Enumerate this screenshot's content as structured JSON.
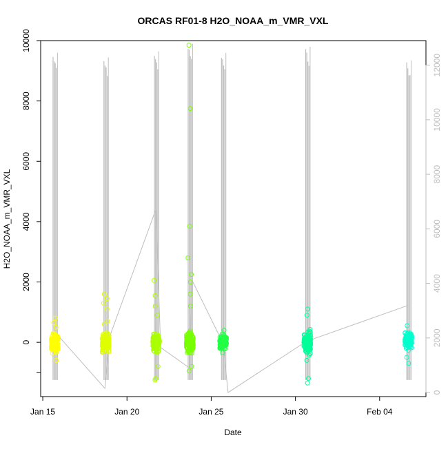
{
  "chart_data": {
    "type": "scatter",
    "title": "ORCAS RF01-8 H2O_NOAA_m_VMR_VXL",
    "xlabel": "Date",
    "ylabel": "H2O_NOAA_m_VMR_VXL",
    "x_ticks": [
      "Jan 15",
      "Jan 20",
      "Jan 25",
      "Jan 30",
      "Feb 04"
    ],
    "y_ticks": [
      "-",
      "0",
      "2000",
      "4000",
      "6000",
      "8000",
      "10000"
    ],
    "y2_ticks": [
      "0",
      "2000",
      "4000",
      "6000",
      "8000",
      "10000",
      "12000"
    ],
    "xlim": [
      "2016-01-14 21:00",
      "2016-02-06 18:00"
    ],
    "ylim": [
      -1800,
      10000
    ],
    "y2lim": [
      -150,
      12900
    ],
    "grid": false,
    "colors": {
      "secondary_series": "#bebebe",
      "flights": [
        "#ffff00",
        "#dfff00",
        "#aaff00",
        "#77ff00",
        "#22ff44",
        "#00ff99",
        "#00ffcc"
      ]
    },
    "flights": [
      {
        "date": "2016-01-15 17:00",
        "median": 0,
        "spread_low": -400,
        "spread_high": 400,
        "outliers": [
          500,
          650,
          800,
          -600
        ],
        "spike_top": 9550
      },
      {
        "date": "2016-01-18 17:30",
        "median": 0,
        "spread_low": -400,
        "spread_high": 400,
        "outliers": [
          700,
          1100,
          1300,
          1450,
          1600,
          600
        ],
        "spike_top": 9400
      },
      {
        "date": "2016-01-21 17:30",
        "median": 0,
        "spread_low": -400,
        "spread_high": 400,
        "outliers": [
          1200,
          1550,
          2050,
          900,
          -800,
          -1200,
          -1250
        ],
        "spike_top": 9600
      },
      {
        "date": "2016-01-23 17:30",
        "median": 0,
        "spread_low": -500,
        "spread_high": 500,
        "outliers": [
          9850,
          7750,
          3850,
          2800,
          2250,
          2000,
          1600,
          1200,
          -800,
          -950
        ],
        "spike_top": 9850
      },
      {
        "date": "2016-01-25 17:00",
        "median": 0,
        "spread_low": -300,
        "spread_high": 300,
        "outliers": [
          400,
          -350
        ],
        "spike_top": 9550
      },
      {
        "date": "2016-01-30 17:00",
        "median": 0,
        "spread_low": -450,
        "spread_high": 450,
        "outliers": [
          1100,
          900,
          -1200,
          -1350,
          -600
        ],
        "spike_top": 9750
      },
      {
        "date": "2016-02-05 17:00",
        "median": 0,
        "spread_low": -300,
        "spread_high": 450,
        "outliers": [
          550,
          -500,
          -700
        ],
        "spike_top": 9300
      }
    ],
    "secondary_series_connector": [
      {
        "date": "2016-01-15 18:00",
        "value": 2200
      },
      {
        "date": "2016-01-18 16:30",
        "value": 150
      },
      {
        "date": "2016-01-19 00:00",
        "value": 2100
      },
      {
        "date": "2016-01-21 17:00",
        "value": 6700
      },
      {
        "date": "2016-01-22 00:00",
        "value": 1650
      },
      {
        "date": "2016-01-23 17:00",
        "value": 900
      },
      {
        "date": "2016-01-23 21:00",
        "value": 4100
      },
      {
        "date": "2016-01-25 17:00",
        "value": 1800
      },
      {
        "date": "2016-01-26 00:00",
        "value": 0
      },
      {
        "date": "2016-01-30 17:00",
        "value": 1900
      },
      {
        "date": "2016-01-31 00:00",
        "value": 1950
      },
      {
        "date": "2016-02-05 17:00",
        "value": 3200
      }
    ]
  }
}
